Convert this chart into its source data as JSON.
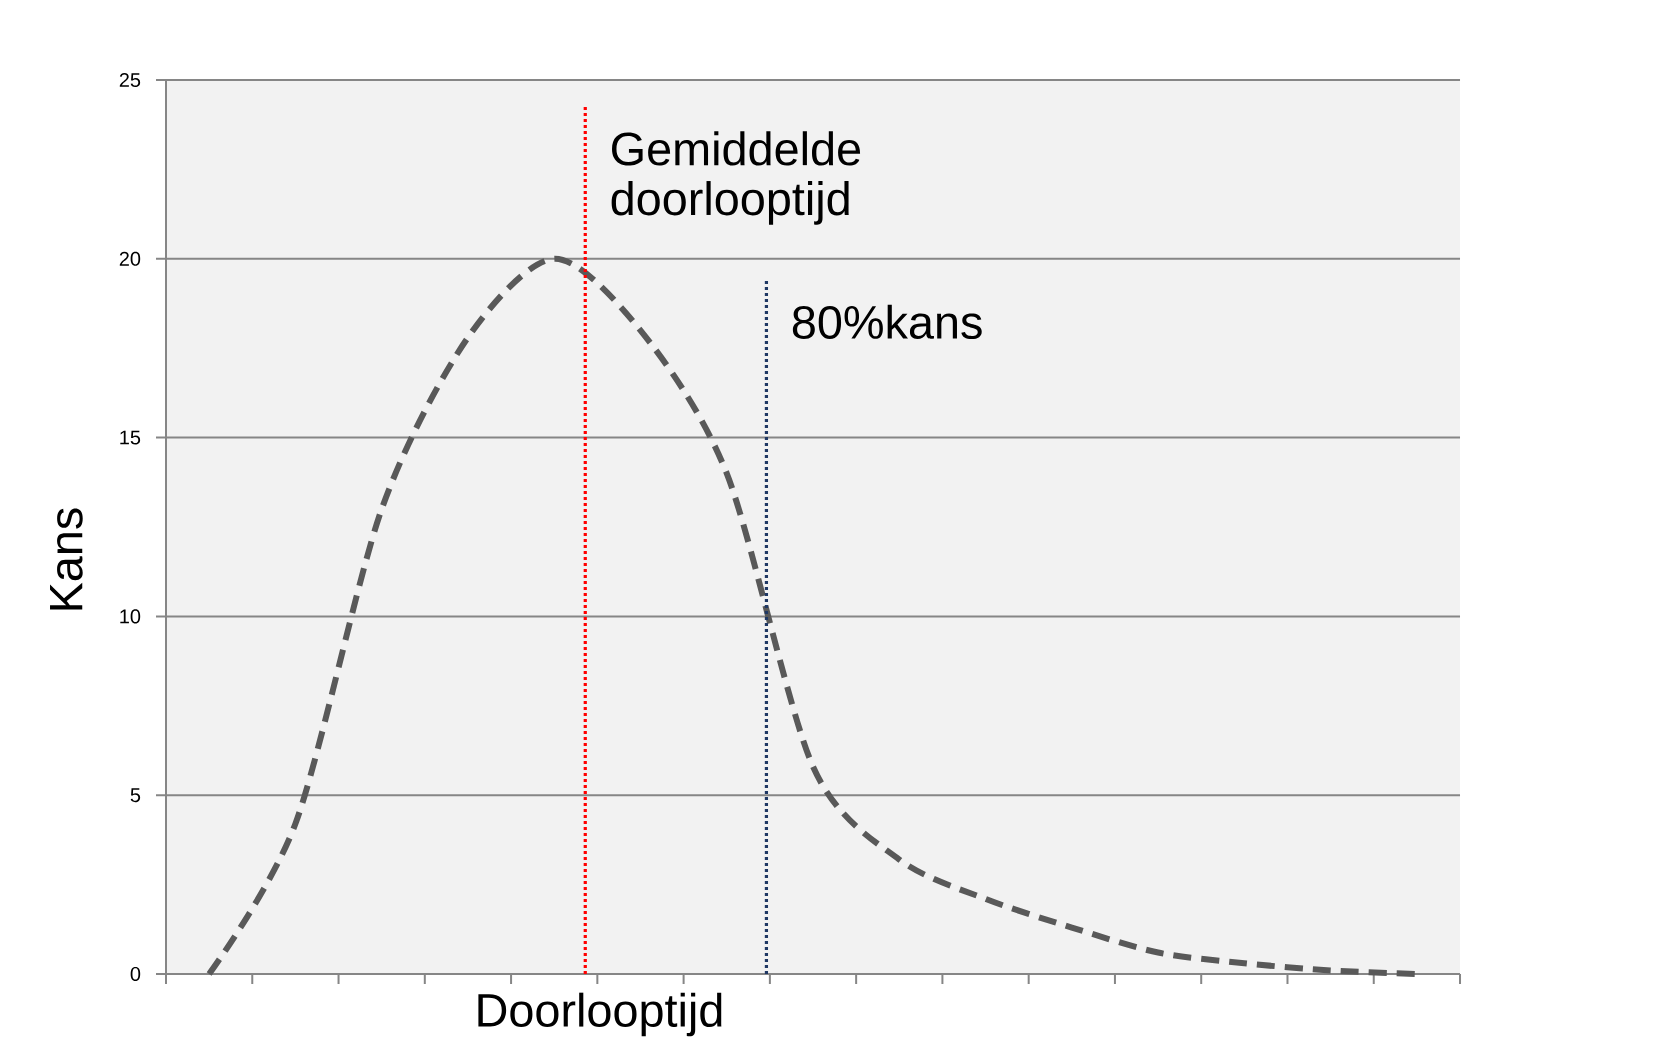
{
  "chart_data": {
    "type": "line",
    "xlabel": "Doorlooptijd",
    "ylabel": "Kans",
    "categories": [
      null,
      null,
      null,
      null,
      null,
      null,
      null,
      null,
      null,
      null,
      null,
      null,
      null,
      null,
      null
    ],
    "values": [
      0,
      4.2,
      13,
      17.8,
      20,
      18,
      14,
      5.8,
      3.2,
      2.1,
      1.3,
      0.6,
      0.3,
      0.1,
      0
    ],
    "color": "#595959",
    "line_style": "dashed",
    "ylim": [
      0,
      25
    ],
    "yticks": [
      0,
      5,
      10,
      15,
      20,
      25
    ],
    "grid": "y",
    "tick_labels": "y",
    "annotations": [
      "Gemiddelde doorlooptijd",
      "80%kans"
    ]
  }
}
